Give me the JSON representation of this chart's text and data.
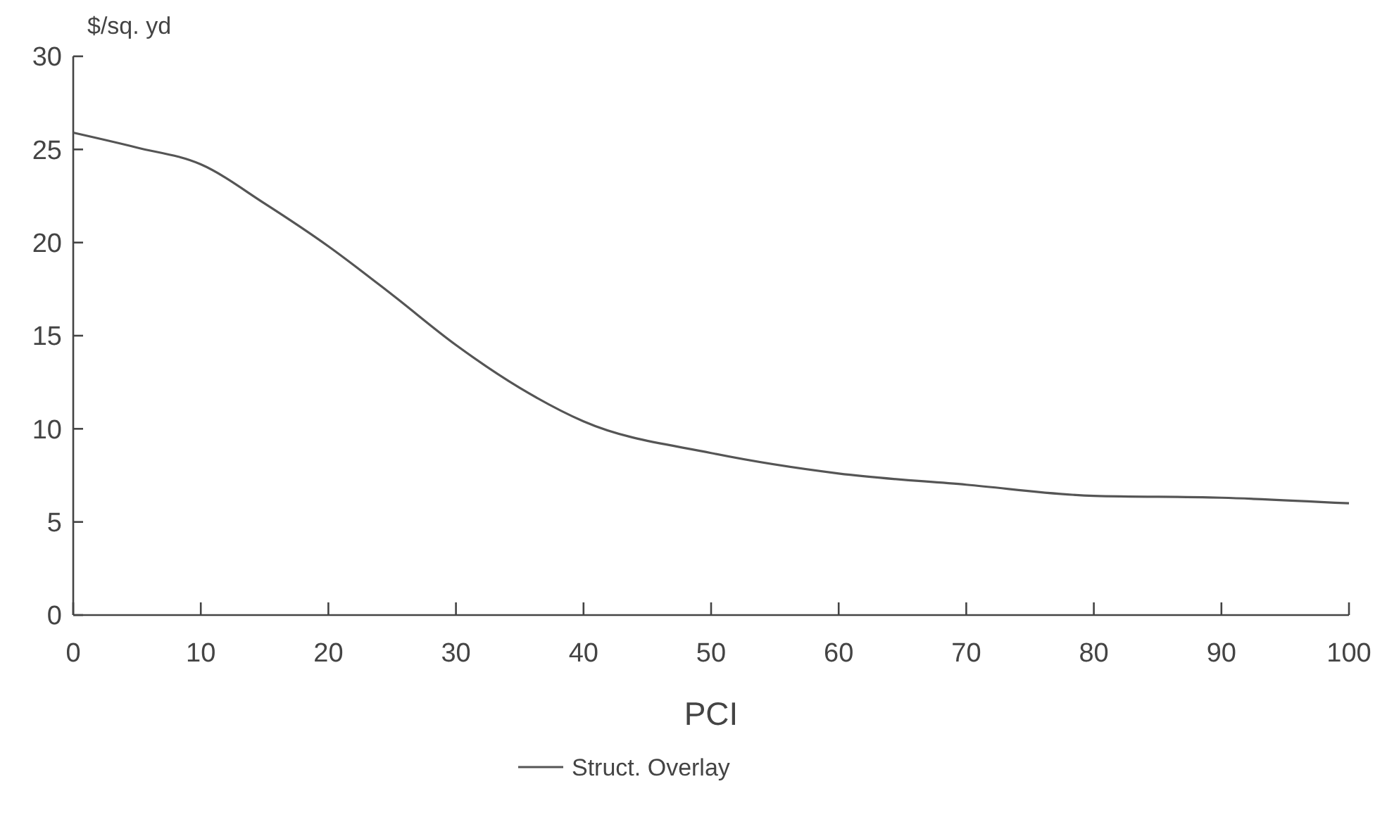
{
  "chart_data": {
    "type": "line",
    "xlabel": "PCI",
    "ylabel": "$/sq. yd",
    "x": [
      0,
      5,
      10,
      15,
      20,
      25,
      30,
      35,
      40,
      50,
      60,
      70,
      80,
      90,
      100
    ],
    "series": [
      {
        "name": "Struct. Overlay",
        "color": "#555555",
        "values": [
          25.9,
          25.1,
          24.2,
          22.1,
          19.8,
          17.2,
          14.5,
          12.2,
          10.4,
          8.7,
          7.6,
          7.0,
          6.4,
          6.3,
          6.0
        ]
      }
    ],
    "xlim": [
      0,
      100
    ],
    "xticks": [
      0,
      10,
      20,
      30,
      40,
      50,
      60,
      70,
      80,
      90,
      100
    ],
    "ylim": [
      0,
      30
    ],
    "yticks": [
      0,
      5,
      10,
      15,
      20,
      25,
      30
    ],
    "grid": false,
    "legend": "bottom",
    "marker": "none",
    "line_style": "solid"
  }
}
